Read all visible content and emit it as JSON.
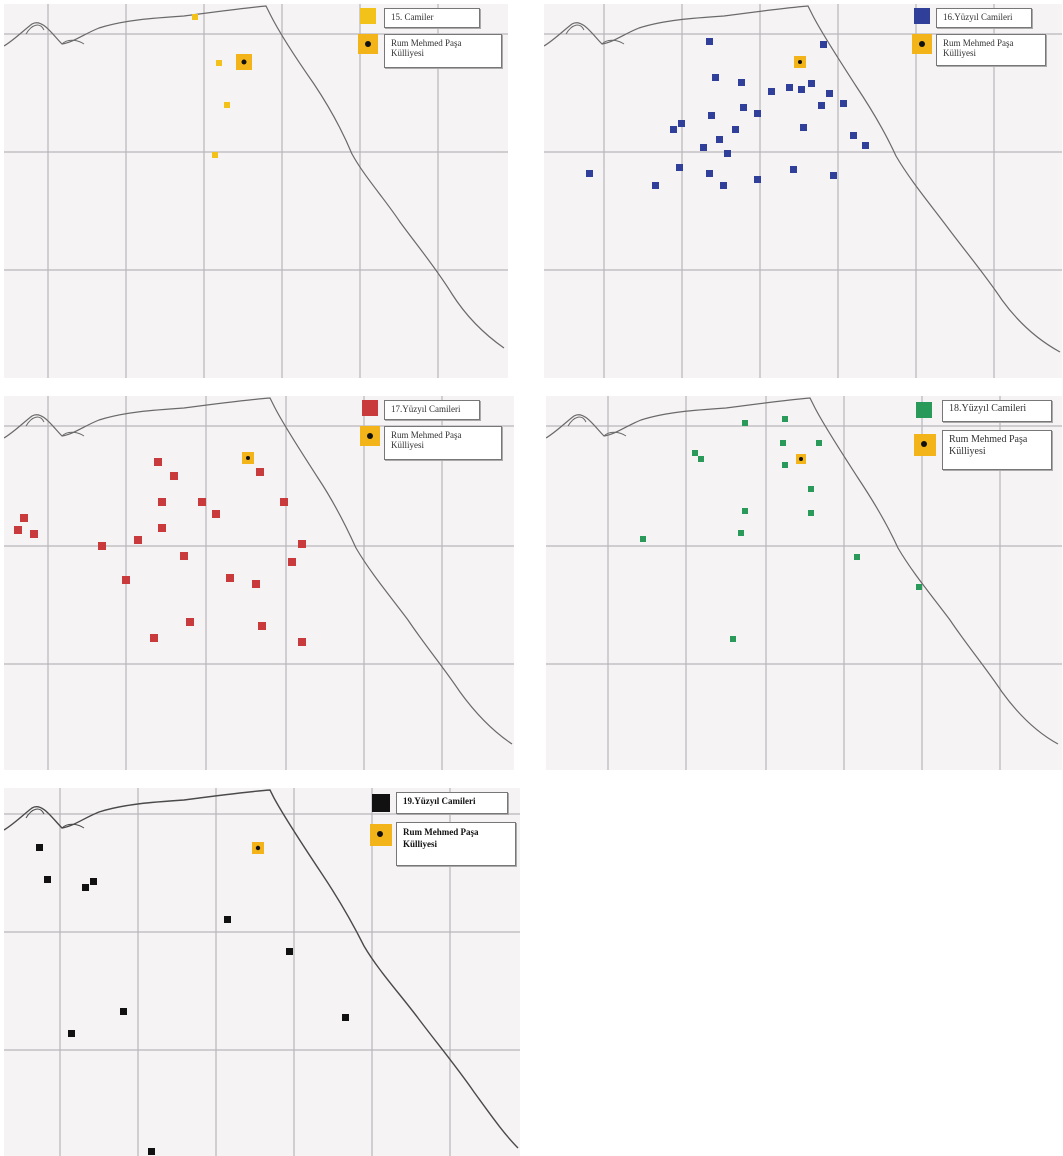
{
  "colors": {
    "c15": "#f2c21a",
    "c16": "#2f3f9a",
    "c17": "#c93a3c",
    "c18": "#2a9a5a",
    "c19": "#111111",
    "pasha": "#f2b418"
  },
  "panels": [
    {
      "id": "p15",
      "legend_title": "15. Camiler",
      "pasha_label": "Rum Mehmed Paşa Külliyesi",
      "color_key": "c15"
    },
    {
      "id": "p16",
      "legend_title": "16.Yüzyıl Camileri",
      "pasha_label": "Rum Mehmed Paşa Külliyesi",
      "color_key": "c16"
    },
    {
      "id": "p17",
      "legend_title": "17.Yüzyıl Camileri",
      "pasha_label": "Rum Mehmed Paşa Külliyesi",
      "color_key": "c17"
    },
    {
      "id": "p18",
      "legend_title": "18.Yüzyıl Camileri",
      "pasha_label": "Rum Mehmed Paşa Külliyesi",
      "color_key": "c18"
    },
    {
      "id": "p19",
      "legend_title": "19.Yüzyıl Camileri",
      "pasha_label": "Rum Mehmed Paşa Külliyesi",
      "color_key": "c19"
    }
  ]
}
